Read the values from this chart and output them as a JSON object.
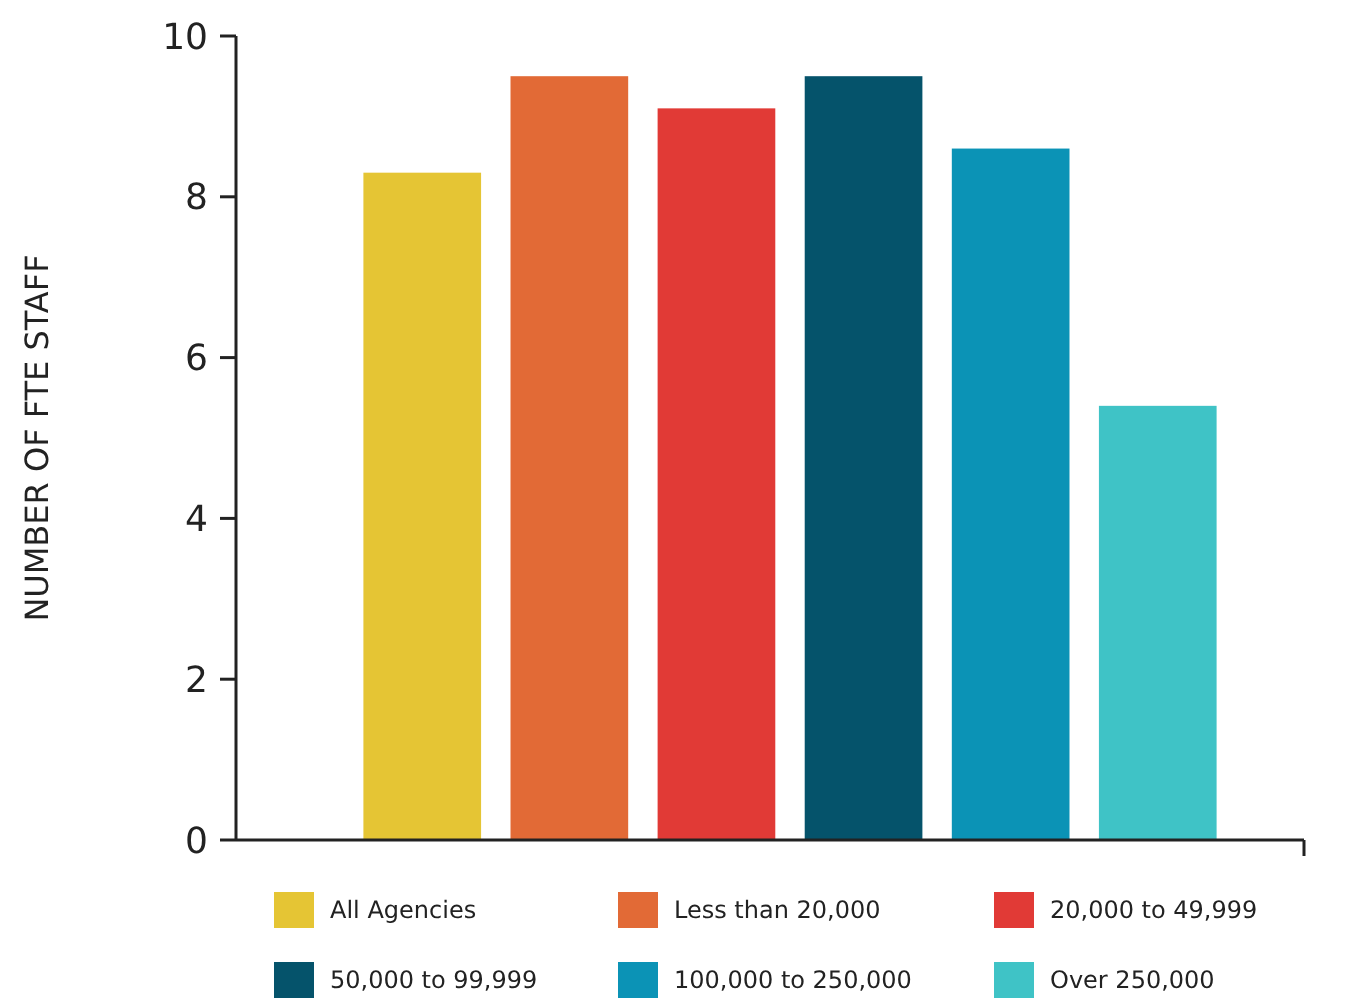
{
  "chart_data": {
    "type": "bar",
    "ylabel": "NUMBER OF FTE STAFF",
    "categories": [
      null
    ],
    "series": [
      {
        "name": "All Agencies",
        "color": "#e5c534",
        "values": [
          8.3
        ]
      },
      {
        "name": "Less than 20,000",
        "color": "#e26a36",
        "values": [
          9.5
        ]
      },
      {
        "name": "20,000 to 49,999",
        "color": "#e13a36",
        "values": [
          9.1
        ]
      },
      {
        "name": "50,000 to 99,999",
        "color": "#05536b",
        "values": [
          9.5
        ]
      },
      {
        "name": "100,000 to 250,000",
        "color": "#0b93b6",
        "values": [
          8.6
        ]
      },
      {
        "name": "Over 250,000",
        "color": "#3fc3c6",
        "values": [
          5.4
        ]
      }
    ],
    "ylim": [
      0,
      10
    ],
    "yticks": [
      0,
      2,
      4,
      6,
      8,
      10
    ],
    "grid": false,
    "legend": "bottom"
  }
}
